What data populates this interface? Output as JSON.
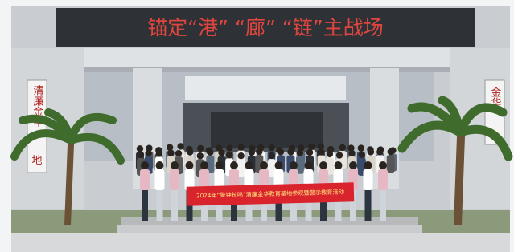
{
  "sign": {
    "text": "锚定“港” “廊” “链”主战场"
  },
  "banner": {
    "text": "2024年“警钟长鸣”清廉金华教育基地参观暨警示教育活动"
  },
  "side_signs": {
    "left": "清廉金华",
    "left_bottom": "地",
    "right": "金华"
  }
}
